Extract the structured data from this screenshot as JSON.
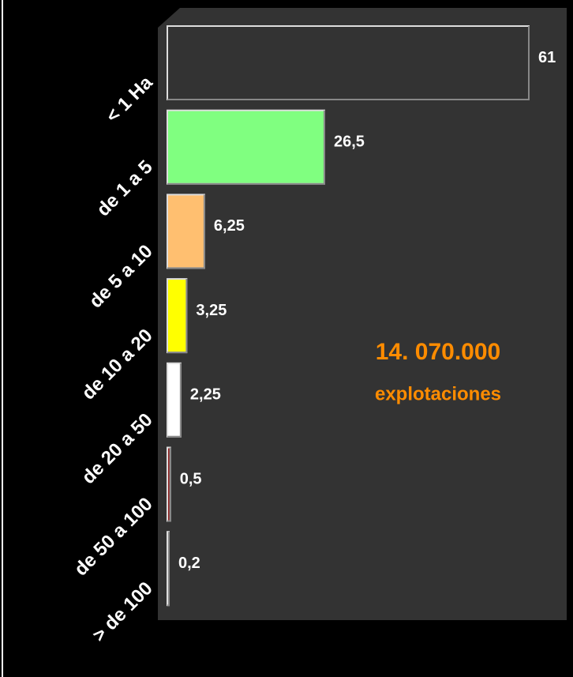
{
  "chart_data": {
    "type": "bar",
    "orientation": "horizontal",
    "categories": [
      "< 1 Ha",
      "de 1 a 5",
      "de 5 a 10",
      "de 10 a 20",
      "de 20 a 50",
      "de 50 a 100",
      "> de 100"
    ],
    "values": [
      61,
      26.5,
      6.25,
      3.25,
      2.25,
      0.5,
      0.2
    ],
    "value_labels": [
      "61",
      "26,5",
      "6,25",
      "3,25",
      "2,25",
      "0,5",
      "0,2"
    ],
    "colors": [
      "#333333",
      "#80ff80",
      "#ffbf70",
      "#ffff00",
      "#ffffff",
      "#8b2020",
      "#ffffff"
    ],
    "xlim": [
      0,
      61
    ],
    "annotations": [
      "14. 070.000",
      "explotaciones"
    ]
  }
}
